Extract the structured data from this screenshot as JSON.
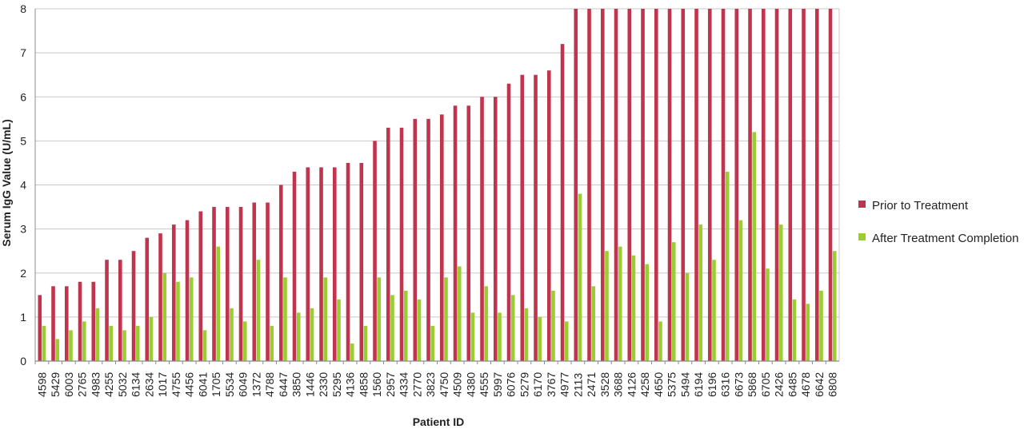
{
  "chart_data": {
    "type": "bar",
    "xlabel": "Patient ID",
    "ylabel": "Serum IgG Value (U/mL)",
    "ylim": [
      0,
      8
    ],
    "yticks": [
      0,
      1,
      2,
      3,
      4,
      5,
      6,
      7,
      8
    ],
    "grid": true,
    "legend_position": "right",
    "categories": [
      "4598",
      "5429",
      "6003",
      "2765",
      "4983",
      "4255",
      "5032",
      "6134",
      "2634",
      "1017",
      "4755",
      "4456",
      "6041",
      "1705",
      "5534",
      "6049",
      "1372",
      "4788",
      "6447",
      "3850",
      "1446",
      "2330",
      "5295",
      "4136",
      "4858",
      "1560",
      "2957",
      "4334",
      "2770",
      "3823",
      "4750",
      "4509",
      "4380",
      "4555",
      "5997",
      "6076",
      "5279",
      "6170",
      "3767",
      "4977",
      "2113",
      "2471",
      "3528",
      "3688",
      "4126",
      "4258",
      "4650",
      "5375",
      "5494",
      "6194",
      "6196",
      "6316",
      "6673",
      "5868",
      "6705",
      "2426",
      "6485",
      "4678",
      "6642",
      "6808"
    ],
    "series": [
      {
        "name": "Prior to Treatment",
        "color": "#c0344d",
        "values": [
          1.5,
          1.7,
          1.7,
          1.8,
          1.8,
          2.3,
          2.3,
          2.5,
          2.8,
          2.9,
          3.1,
          3.2,
          3.4,
          3.5,
          3.5,
          3.5,
          3.6,
          3.6,
          4.0,
          4.3,
          4.4,
          4.4,
          4.4,
          4.5,
          4.5,
          5.0,
          5.3,
          5.3,
          5.5,
          5.5,
          5.6,
          5.8,
          5.8,
          6.0,
          6.0,
          6.3,
          6.5,
          6.5,
          6.6,
          7.2,
          8,
          8,
          8,
          8,
          8,
          8,
          8,
          8,
          8,
          8,
          8,
          8,
          8,
          8,
          8,
          8,
          8,
          8,
          8,
          8
        ]
      },
      {
        "name": "After Treatment Completion",
        "color": "#9acd32",
        "values": [
          0.8,
          0.5,
          0.7,
          0.9,
          1.2,
          0.8,
          0.7,
          0.8,
          1.0,
          2.0,
          1.8,
          1.9,
          0.7,
          2.6,
          1.2,
          0.9,
          2.3,
          0.8,
          1.9,
          1.1,
          1.2,
          1.9,
          1.4,
          0.4,
          0.8,
          1.9,
          1.5,
          1.6,
          1.4,
          0.8,
          1.9,
          2.15,
          1.1,
          1.7,
          1.1,
          1.5,
          1.2,
          1.0,
          1.6,
          0.9,
          3.8,
          1.7,
          2.5,
          2.6,
          2.4,
          2.2,
          0.9,
          2.7,
          2.0,
          3.1,
          2.3,
          4.3,
          3.2,
          5.2,
          2.1,
          3.1,
          1.4,
          1.3,
          1.6,
          2.5
        ]
      }
    ]
  },
  "colors": {
    "gridline": "#c8c8c8",
    "axis": "#8c8c8c",
    "prior": "#c0344d",
    "after": "#9acd32"
  }
}
